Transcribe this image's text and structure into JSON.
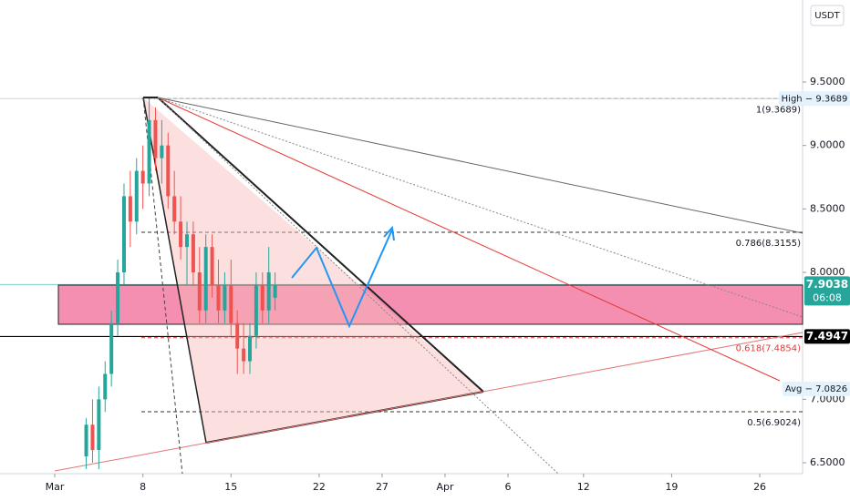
{
  "chart_data": {
    "type": "candlestick",
    "unit": "USDT",
    "candles": {
      "x": [
        3.5,
        4,
        4.5,
        5,
        5.5,
        6,
        6.5,
        7,
        7.5,
        8,
        8.5,
        9,
        9.5,
        10,
        10.5,
        11,
        11.5,
        12,
        12.5,
        13,
        13.5,
        14,
        14.5,
        15,
        15.5,
        16,
        16.5,
        17,
        17.5,
        18,
        18.5
      ],
      "open": [
        6.55,
        6.8,
        6.6,
        7.0,
        7.2,
        7.6,
        8.0,
        8.6,
        8.4,
        8.8,
        8.7,
        9.2,
        8.9,
        9.0,
        8.6,
        8.4,
        8.2,
        8.3,
        8.0,
        7.7,
        8.2,
        7.9,
        7.7,
        7.9,
        7.6,
        7.4,
        7.3,
        7.5,
        7.9,
        7.7,
        7.8
      ],
      "high": [
        6.85,
        7.0,
        7.1,
        7.3,
        7.7,
        8.1,
        8.7,
        8.8,
        8.9,
        9.0,
        9.3689,
        9.3,
        9.2,
        9.1,
        8.8,
        8.6,
        8.4,
        8.4,
        8.2,
        8.3,
        8.3,
        8.1,
        8.0,
        8.1,
        7.7,
        7.6,
        7.6,
        8.0,
        8.0,
        8.2,
        8.0
      ],
      "low": [
        6.45,
        6.5,
        6.45,
        6.9,
        7.1,
        7.5,
        7.9,
        8.2,
        8.3,
        8.5,
        8.6,
        8.8,
        8.7,
        8.5,
        8.3,
        8.1,
        7.9,
        7.9,
        7.6,
        7.6,
        7.8,
        7.6,
        7.6,
        7.5,
        7.2,
        7.2,
        7.2,
        7.4,
        7.6,
        7.6,
        7.7
      ],
      "close": [
        6.8,
        6.6,
        7.0,
        7.2,
        7.6,
        8.0,
        8.6,
        8.4,
        8.8,
        8.7,
        9.2,
        8.9,
        9.0,
        8.6,
        8.4,
        8.2,
        8.3,
        8.0,
        7.7,
        8.2,
        7.9,
        7.7,
        7.9,
        7.6,
        7.4,
        7.3,
        7.5,
        7.9,
        7.7,
        8.0,
        7.9038
      ]
    },
    "up_color": "#26a69a",
    "down_color": "#ef5350",
    "xlim": [
      -3.35,
      60.4
    ],
    "xticks": [
      {
        "value": 1,
        "label": "Mar"
      },
      8,
      15,
      22,
      27,
      {
        "value": 32,
        "label": "Apr"
      },
      {
        "value": 37,
        "label": "6"
      },
      {
        "value": 43,
        "label": "12"
      },
      {
        "value": 50,
        "label": "19"
      },
      {
        "value": 57,
        "label": "26"
      }
    ],
    "ylim": [
      6.414,
      10.146
    ],
    "yticks": [
      {
        "value": 9.5,
        "label": "9.5000"
      },
      {
        "value": 9.0,
        "label": "9.0000"
      },
      {
        "value": 8.5,
        "label": "8.5000"
      },
      {
        "value": 8.0,
        "label": "8.0000"
      },
      {
        "value": 7.0,
        "label": "7.0000"
      },
      {
        "value": 6.5,
        "label": "6.5000"
      }
    ],
    "fib_levels": [
      {
        "value": 9.3689,
        "label": "1(9.3689)"
      },
      {
        "value": 8.3155,
        "label": "0.786(8.3155)"
      },
      {
        "value": 7.4854,
        "label": "0.618(7.4854)"
      },
      {
        "value": 6.9024,
        "label": "0.5(6.9024)"
      }
    ],
    "price_tags": [
      {
        "value": 9.3689,
        "label": "High − 9.3689"
      },
      {
        "value": 7.9038,
        "label": "7.9038",
        "countdown": "06:08"
      },
      {
        "value": 7.4947,
        "label": "7.4947"
      },
      {
        "value": 7.0826,
        "label": "Avg − 7.0826"
      }
    ]
  }
}
